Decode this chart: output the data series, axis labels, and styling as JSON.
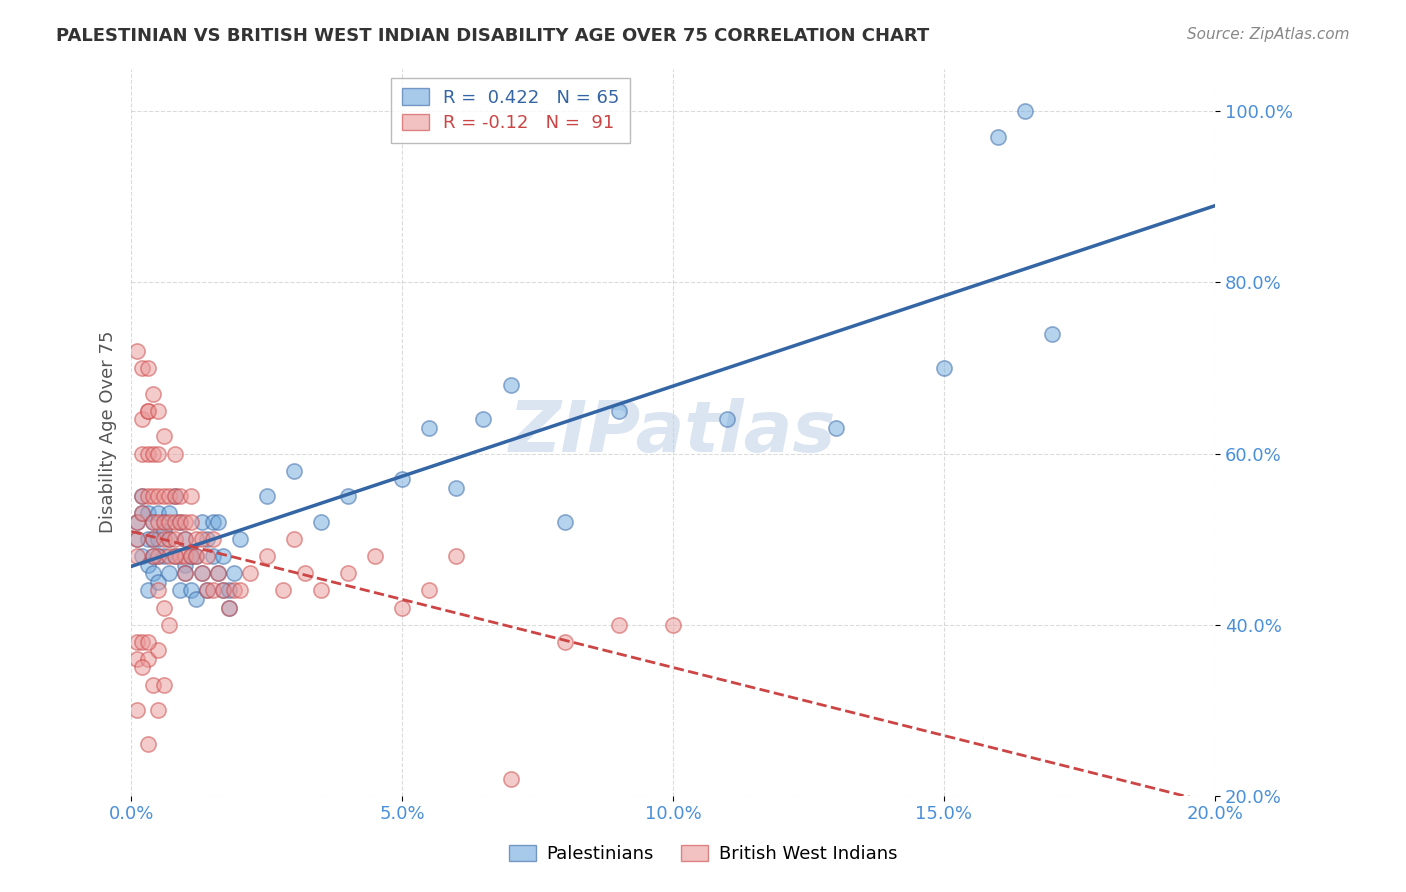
{
  "title": "PALESTINIAN VS BRITISH WEST INDIAN DISABILITY AGE OVER 75 CORRELATION CHART",
  "source": "Source: ZipAtlas.com",
  "xlabel": "",
  "ylabel": "Disability Age Over 75",
  "legend_label_blue": "Palestinians",
  "legend_label_pink": "British West Indians",
  "R_blue": 0.422,
  "N_blue": 65,
  "R_pink": -0.12,
  "N_pink": 91,
  "blue_color": "#6fa8dc",
  "pink_color": "#ea9999",
  "blue_line_color": "#3465a4",
  "pink_line_color": "#cc4444",
  "watermark": "ZIPatlas",
  "watermark_color": "#b8cce4",
  "xmin": 0.0,
  "xmax": 0.2,
  "ymin": 0.2,
  "ymax": 1.05,
  "yticks": [
    0.2,
    0.4,
    0.6,
    0.8,
    1.0
  ],
  "xticks": [
    0.0,
    0.05,
    0.1,
    0.15,
    0.2
  ],
  "blue_scatter_x": [
    0.001,
    0.001,
    0.002,
    0.002,
    0.002,
    0.003,
    0.003,
    0.003,
    0.003,
    0.004,
    0.004,
    0.004,
    0.004,
    0.005,
    0.005,
    0.005,
    0.005,
    0.006,
    0.006,
    0.006,
    0.007,
    0.007,
    0.007,
    0.008,
    0.008,
    0.009,
    0.009,
    0.01,
    0.01,
    0.01,
    0.011,
    0.011,
    0.012,
    0.012,
    0.013,
    0.013,
    0.014,
    0.014,
    0.015,
    0.015,
    0.016,
    0.016,
    0.017,
    0.017,
    0.018,
    0.018,
    0.019,
    0.02,
    0.025,
    0.03,
    0.035,
    0.04,
    0.05,
    0.055,
    0.06,
    0.065,
    0.07,
    0.08,
    0.09,
    0.11,
    0.13,
    0.15,
    0.16,
    0.165,
    0.17
  ],
  "blue_scatter_y": [
    0.52,
    0.5,
    0.48,
    0.53,
    0.55,
    0.5,
    0.47,
    0.44,
    0.53,
    0.48,
    0.52,
    0.5,
    0.46,
    0.53,
    0.5,
    0.48,
    0.45,
    0.52,
    0.48,
    0.51,
    0.46,
    0.5,
    0.53,
    0.48,
    0.55,
    0.44,
    0.52,
    0.5,
    0.47,
    0.46,
    0.44,
    0.48,
    0.43,
    0.48,
    0.46,
    0.52,
    0.44,
    0.5,
    0.52,
    0.48,
    0.46,
    0.52,
    0.44,
    0.48,
    0.44,
    0.42,
    0.46,
    0.5,
    0.55,
    0.58,
    0.52,
    0.55,
    0.57,
    0.63,
    0.56,
    0.64,
    0.68,
    0.52,
    0.65,
    0.64,
    0.63,
    0.7,
    0.97,
    1.0,
    0.74
  ],
  "pink_scatter_x": [
    0.001,
    0.001,
    0.001,
    0.001,
    0.002,
    0.002,
    0.002,
    0.002,
    0.002,
    0.003,
    0.003,
    0.003,
    0.003,
    0.003,
    0.004,
    0.004,
    0.004,
    0.004,
    0.004,
    0.005,
    0.005,
    0.005,
    0.005,
    0.005,
    0.006,
    0.006,
    0.006,
    0.006,
    0.007,
    0.007,
    0.007,
    0.007,
    0.008,
    0.008,
    0.008,
    0.008,
    0.009,
    0.009,
    0.009,
    0.01,
    0.01,
    0.01,
    0.01,
    0.011,
    0.011,
    0.011,
    0.012,
    0.012,
    0.013,
    0.013,
    0.014,
    0.014,
    0.015,
    0.015,
    0.016,
    0.017,
    0.018,
    0.019,
    0.02,
    0.022,
    0.025,
    0.028,
    0.03,
    0.032,
    0.035,
    0.04,
    0.045,
    0.05,
    0.055,
    0.06,
    0.07,
    0.08,
    0.09,
    0.1,
    0.001,
    0.001,
    0.002,
    0.003,
    0.004,
    0.005,
    0.006,
    0.005,
    0.003,
    0.004,
    0.005,
    0.006,
    0.007,
    0.008,
    0.001,
    0.002,
    0.003
  ],
  "pink_scatter_y": [
    0.52,
    0.5,
    0.48,
    0.72,
    0.64,
    0.55,
    0.7,
    0.6,
    0.53,
    0.65,
    0.55,
    0.7,
    0.65,
    0.6,
    0.67,
    0.6,
    0.55,
    0.5,
    0.52,
    0.55,
    0.6,
    0.52,
    0.48,
    0.65,
    0.52,
    0.55,
    0.62,
    0.5,
    0.55,
    0.52,
    0.48,
    0.5,
    0.52,
    0.55,
    0.6,
    0.5,
    0.48,
    0.52,
    0.55,
    0.5,
    0.48,
    0.52,
    0.46,
    0.48,
    0.52,
    0.55,
    0.48,
    0.5,
    0.46,
    0.5,
    0.48,
    0.44,
    0.44,
    0.5,
    0.46,
    0.44,
    0.42,
    0.44,
    0.44,
    0.46,
    0.48,
    0.44,
    0.5,
    0.46,
    0.44,
    0.46,
    0.48,
    0.42,
    0.44,
    0.48,
    0.22,
    0.38,
    0.4,
    0.4,
    0.36,
    0.38,
    0.38,
    0.36,
    0.33,
    0.3,
    0.33,
    0.37,
    0.38,
    0.48,
    0.44,
    0.42,
    0.4,
    0.48,
    0.3,
    0.35,
    0.26
  ]
}
